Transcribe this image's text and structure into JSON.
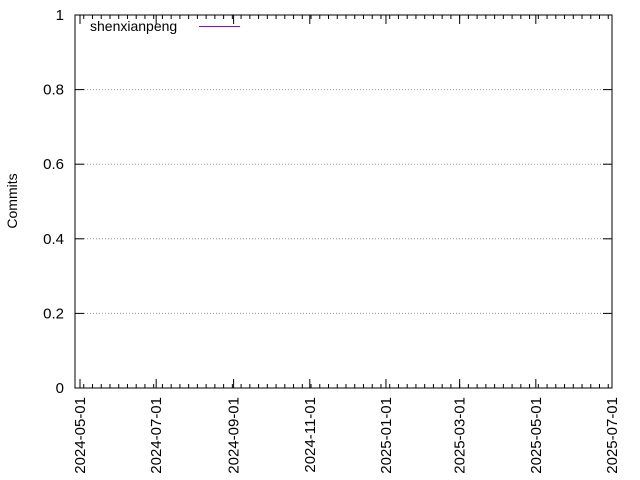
{
  "chart_data": {
    "type": "line",
    "ylabel": "Commits",
    "ylim": [
      0,
      1
    ],
    "y_ticks": [
      "0",
      "0.2",
      "0.4",
      "0.6",
      "0.8",
      "1"
    ],
    "x_range": [
      "2024-04-27",
      "2025-07-01"
    ],
    "x_ticks": [
      "2024-05-01",
      "2024-07-01",
      "2024-09-01",
      "2024-11-01",
      "2025-01-01",
      "2025-03-01",
      "2025-05-01",
      "2025-07-01"
    ],
    "grid": "horizontal-dotted",
    "legend_position": "top-left",
    "series": [
      {
        "name": "shenxianpeng",
        "color": "#9400d3",
        "points": []
      }
    ]
  }
}
